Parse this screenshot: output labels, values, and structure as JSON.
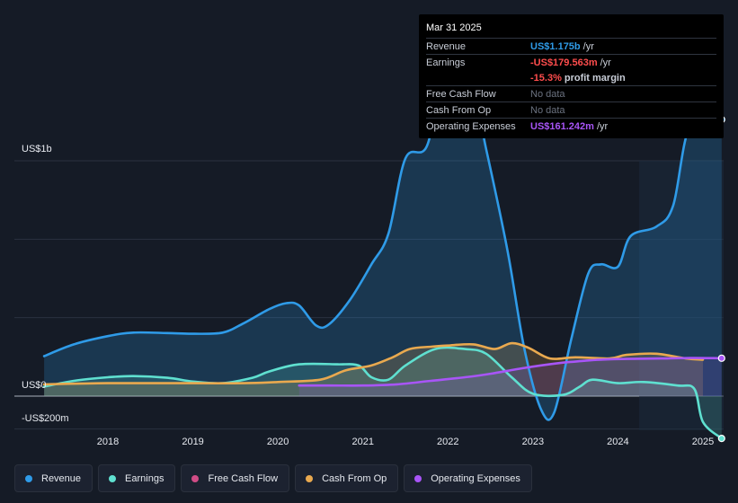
{
  "tooltip": {
    "date": "Mar 31 2025",
    "rows": [
      {
        "label": "Revenue",
        "value": "US$1.175b",
        "unit": "/yr"
      },
      {
        "label": "Earnings",
        "value": "-US$179.563m",
        "unit": "/yr"
      },
      {
        "label": "",
        "value": "-15.3%",
        "unit": "profit margin"
      },
      {
        "label": "Free Cash Flow",
        "value": "No data",
        "unit": ""
      },
      {
        "label": "Cash From Op",
        "value": "No data",
        "unit": ""
      },
      {
        "label": "Operating Expenses",
        "value": "US$161.242m",
        "unit": "/yr"
      }
    ]
  },
  "axis": {
    "top_label": "US$1b",
    "zero_label": "US$0",
    "bottom_label": "-US$200m"
  },
  "legend": [
    {
      "label": "Revenue",
      "color": "#2f9be8"
    },
    {
      "label": "Earnings",
      "color": "#5fe0d0"
    },
    {
      "label": "Free Cash Flow",
      "color": "#d04c86"
    },
    {
      "label": "Cash From Op",
      "color": "#e9a94f"
    },
    {
      "label": "Operating Expenses",
      "color": "#a855f7"
    }
  ],
  "chart_data": {
    "type": "line",
    "x_ticks": [
      "2018",
      "2019",
      "2020",
      "2021",
      "2022",
      "2023",
      "2024",
      "2025"
    ],
    "y_ticks": [
      "US$1b",
      "US$0",
      "-US$200m"
    ],
    "ylim": [
      -200,
      1400
    ],
    "unit": "US$m",
    "series": [
      {
        "name": "Revenue",
        "color": "#2f9be8",
        "points": [
          [
            2017.25,
            170
          ],
          [
            2017.6,
            220
          ],
          [
            2018.0,
            255
          ],
          [
            2018.3,
            270
          ],
          [
            2018.7,
            268
          ],
          [
            2019.0,
            265
          ],
          [
            2019.35,
            270
          ],
          [
            2019.6,
            310
          ],
          [
            2019.9,
            370
          ],
          [
            2020.1,
            395
          ],
          [
            2020.25,
            385
          ],
          [
            2020.45,
            300
          ],
          [
            2020.6,
            305
          ],
          [
            2020.85,
            410
          ],
          [
            2021.1,
            560
          ],
          [
            2021.3,
            690
          ],
          [
            2021.5,
            1010
          ],
          [
            2021.75,
            1060
          ],
          [
            2021.95,
            1350
          ],
          [
            2022.25,
            1360
          ],
          [
            2022.45,
            1050
          ],
          [
            2022.7,
            620
          ],
          [
            2022.9,
            200
          ],
          [
            2023.1,
            -60
          ],
          [
            2023.25,
            -70
          ],
          [
            2023.45,
            240
          ],
          [
            2023.65,
            520
          ],
          [
            2023.8,
            560
          ],
          [
            2024.0,
            550
          ],
          [
            2024.15,
            680
          ],
          [
            2024.45,
            720
          ],
          [
            2024.65,
            810
          ],
          [
            2024.85,
            1150
          ],
          [
            2025.22,
            1175
          ]
        ]
      },
      {
        "name": "Earnings",
        "color": "#5fe0d0",
        "points": [
          [
            2017.25,
            40
          ],
          [
            2017.6,
            65
          ],
          [
            2018.0,
            80
          ],
          [
            2018.3,
            85
          ],
          [
            2018.7,
            78
          ],
          [
            2019.0,
            62
          ],
          [
            2019.35,
            55
          ],
          [
            2019.7,
            78
          ],
          [
            2019.9,
            105
          ],
          [
            2020.25,
            135
          ],
          [
            2020.7,
            135
          ],
          [
            2020.95,
            130
          ],
          [
            2021.1,
            80
          ],
          [
            2021.3,
            70
          ],
          [
            2021.5,
            130
          ],
          [
            2021.85,
            200
          ],
          [
            2022.2,
            200
          ],
          [
            2022.45,
            180
          ],
          [
            2022.75,
            80
          ],
          [
            2023.0,
            10
          ],
          [
            2023.35,
            5
          ],
          [
            2023.55,
            40
          ],
          [
            2023.7,
            70
          ],
          [
            2024.0,
            55
          ],
          [
            2024.3,
            60
          ],
          [
            2024.7,
            45
          ],
          [
            2024.9,
            30
          ],
          [
            2025.0,
            -110
          ],
          [
            2025.22,
            -180
          ]
        ]
      },
      {
        "name": "Cash From Op",
        "color": "#e9a94f",
        "points": [
          [
            2017.25,
            50
          ],
          [
            2018.0,
            55
          ],
          [
            2019.0,
            55
          ],
          [
            2019.6,
            55
          ],
          [
            2020.0,
            60
          ],
          [
            2020.5,
            70
          ],
          [
            2020.8,
            110
          ],
          [
            2021.1,
            130
          ],
          [
            2021.35,
            165
          ],
          [
            2021.55,
            200
          ],
          [
            2021.8,
            210
          ],
          [
            2022.0,
            215
          ],
          [
            2022.3,
            220
          ],
          [
            2022.55,
            200
          ],
          [
            2022.75,
            225
          ],
          [
            2022.95,
            205
          ],
          [
            2023.2,
            160
          ],
          [
            2023.5,
            165
          ],
          [
            2023.9,
            160
          ],
          [
            2024.1,
            175
          ],
          [
            2024.45,
            180
          ],
          [
            2024.8,
            160
          ],
          [
            2025.0,
            155
          ]
        ]
      },
      {
        "name": "Operating Expenses",
        "color": "#a855f7",
        "points": [
          [
            2020.25,
            45
          ],
          [
            2020.6,
            45
          ],
          [
            2021.0,
            45
          ],
          [
            2021.4,
            50
          ],
          [
            2021.8,
            65
          ],
          [
            2022.2,
            80
          ],
          [
            2022.5,
            95
          ],
          [
            2022.9,
            120
          ],
          [
            2023.3,
            140
          ],
          [
            2023.6,
            150
          ],
          [
            2023.8,
            155
          ],
          [
            2024.1,
            158
          ],
          [
            2024.5,
            160
          ],
          [
            2024.85,
            162
          ],
          [
            2025.22,
            161
          ]
        ]
      }
    ]
  }
}
